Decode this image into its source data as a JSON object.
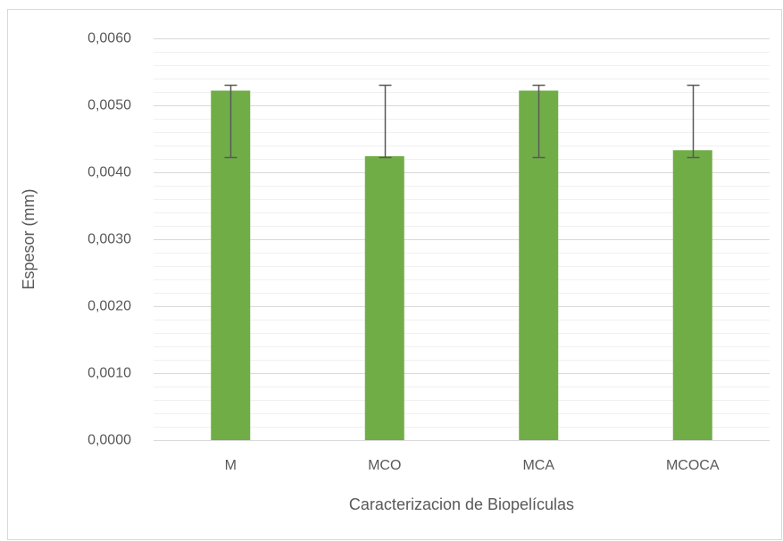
{
  "chart_data": {
    "type": "bar",
    "x_label": "Caracterizacion de Biopelículas",
    "y_label": "Espesor (mm)",
    "categories": [
      "M",
      "MCO",
      "MCA",
      "MCOCA"
    ],
    "values": [
      0.00522,
      0.00424,
      0.00522,
      0.00433
    ],
    "errors_plus": [
      8e-05,
      0.00106,
      8e-05,
      0.00097
    ],
    "errors_minus": [
      0.001,
      2e-05,
      0.001,
      0.00011
    ],
    "color": "#70ad47",
    "error_color": "#595959",
    "ylim": [
      0,
      0.006
    ],
    "yticks": [
      {
        "value": 0,
        "label": "0,0000"
      },
      {
        "value": 0.001,
        "label": "0,0010"
      },
      {
        "value": 0.002,
        "label": "0,0020"
      },
      {
        "value": 0.003,
        "label": "0,0030"
      },
      {
        "value": 0.004,
        "label": "0,0040"
      },
      {
        "value": 0.005,
        "label": "0,0050"
      },
      {
        "value": 0.006,
        "label": "0,0060"
      }
    ],
    "minor_yticks": [
      0.0002,
      0.0004,
      0.0006,
      0.0008,
      0.0012,
      0.0014,
      0.0016,
      0.0018,
      0.0022,
      0.0024,
      0.0026,
      0.0028,
      0.0032,
      0.0034,
      0.0036,
      0.0038,
      0.0042,
      0.0044,
      0.0046,
      0.0048,
      0.0052,
      0.0054,
      0.0056,
      0.0058
    ],
    "grid": true
  }
}
